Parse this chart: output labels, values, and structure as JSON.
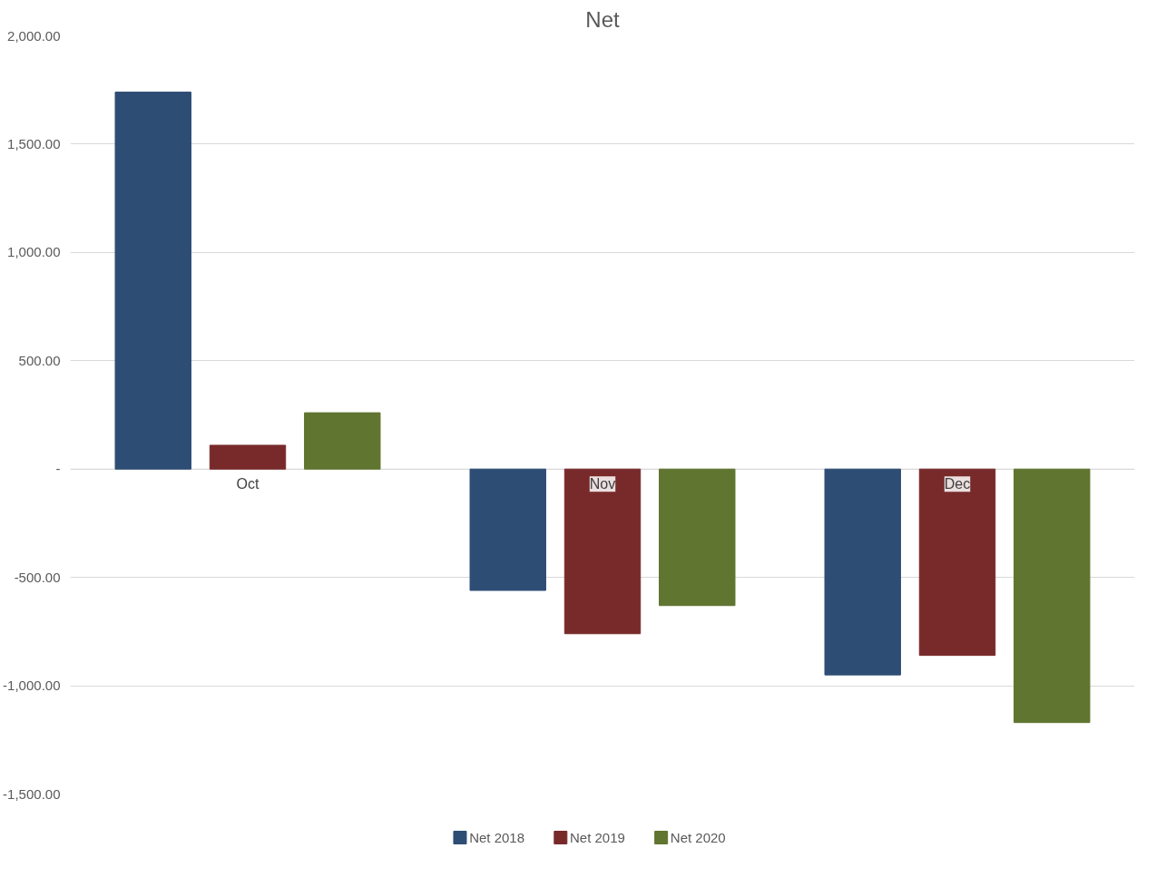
{
  "chart_data": {
    "type": "bar",
    "title": "Net",
    "categories": [
      "Oct",
      "Nov",
      "Dec"
    ],
    "series": [
      {
        "name": "Net 2018",
        "color": "#2e4d74",
        "values": [
          1740,
          -560,
          -950
        ]
      },
      {
        "name": "Net 2019",
        "color": "#782a2a",
        "values": [
          110,
          -760,
          -860
        ]
      },
      {
        "name": "Net 2020",
        "color": "#5f7530",
        "values": [
          260,
          -630,
          -1170
        ]
      }
    ],
    "ylim": [
      -1500,
      2000
    ],
    "yticks": [
      {
        "value": -1500,
        "label": "-1,500.00"
      },
      {
        "value": -1000,
        "label": "-1,000.00"
      },
      {
        "value": -500,
        "label": "-500.00"
      },
      {
        "value": 0,
        "label": "-"
      },
      {
        "value": 500,
        "label": "500.00"
      },
      {
        "value": 1000,
        "label": "1,000.00"
      },
      {
        "value": 1500,
        "label": "1,500.00"
      },
      {
        "value": 2000,
        "label": "2,000.00"
      }
    ],
    "grid": "y",
    "legend": "bottom"
  }
}
